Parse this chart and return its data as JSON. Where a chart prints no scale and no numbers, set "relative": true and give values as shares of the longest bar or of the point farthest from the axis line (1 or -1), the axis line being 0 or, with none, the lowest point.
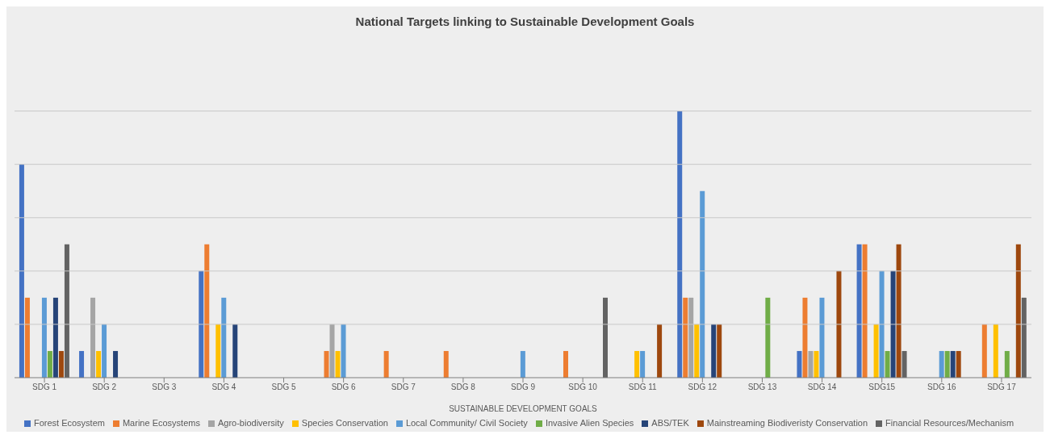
{
  "chart_data": {
    "type": "bar",
    "title": "National Targets linking to Sustainable Development Goals",
    "xlabel": "SUSTAINABLE DEVELOPMENT GOALS",
    "relative": true,
    "legend": "bottom",
    "ref_lines": [
      {
        "axis": "y",
        "value": 0.2,
        "color": "#c8c8c8"
      },
      {
        "axis": "y",
        "value": 0.4,
        "color": "#c8c8c8"
      },
      {
        "axis": "y",
        "value": 0.6,
        "color": "#c8c8c8"
      },
      {
        "axis": "y",
        "value": 0.8,
        "color": "#c8c8c8"
      },
      {
        "axis": "y",
        "value": 1,
        "color": "#c8c8c8"
      }
    ],
    "categories": [
      "SDG 1",
      "SDG 2",
      "SDG 3",
      "SDG 4",
      "SDG 5",
      "SDG 6",
      "SDG 7",
      "SDG 8",
      "SDG 9",
      "SDG 10",
      "SDG 11",
      "SDG 12",
      "SDG 13",
      "SDG 14",
      "SDG15",
      "SDG 16",
      "SDG 17"
    ],
    "series": [
      {
        "name": "Forest Ecosystem",
        "color": "#4472c4",
        "values": [
          0.8,
          0.1,
          0,
          0.4,
          0,
          0,
          0,
          0,
          0,
          0,
          0,
          1,
          0,
          0.1,
          0.5,
          0,
          0
        ]
      },
      {
        "name": "Marine Ecosystems",
        "color": "#ed7d31",
        "values": [
          0.3,
          0,
          0,
          0.5,
          0,
          0.1,
          0.1,
          0.1,
          0,
          0.1,
          0,
          0.3,
          0,
          0.3,
          0.5,
          0,
          0.2
        ]
      },
      {
        "name": "Agro-biodiversity",
        "color": "#a5a5a5",
        "values": [
          0,
          0.3,
          0,
          0,
          0,
          0.2,
          0,
          0,
          0,
          0,
          0,
          0.3,
          0,
          0.1,
          0,
          0,
          0
        ]
      },
      {
        "name": "Species Conservation",
        "color": "#ffc000",
        "values": [
          0,
          0.1,
          0,
          0.2,
          0,
          0.1,
          0,
          0,
          0,
          0,
          0.1,
          0.2,
          0,
          0.1,
          0.2,
          0,
          0.2
        ]
      },
      {
        "name": "Local Community/ Civil Society",
        "color": "#5b9bd5",
        "values": [
          0.3,
          0.2,
          0,
          0.3,
          0,
          0.2,
          0,
          0,
          0.1,
          0,
          0.1,
          0.7,
          0,
          0.3,
          0.4,
          0.1,
          0
        ]
      },
      {
        "name": "Invasive Alien Species",
        "color": "#70ad47",
        "values": [
          0.1,
          0,
          0,
          0,
          0,
          0,
          0,
          0,
          0,
          0,
          0,
          0,
          0.3,
          0,
          0.1,
          0.1,
          0.1
        ]
      },
      {
        "name": "ABS/TEK",
        "color": "#264478",
        "values": [
          0.3,
          0.1,
          0,
          0.2,
          0,
          0,
          0,
          0,
          0,
          0,
          0,
          0.2,
          0,
          0,
          0.4,
          0.1,
          0
        ]
      },
      {
        "name": "Mainstreaming Biodiveristy Conservation",
        "color": "#9e480e",
        "values": [
          0.1,
          0,
          0,
          0,
          0,
          0,
          0,
          0,
          0,
          0,
          0.2,
          0.2,
          0,
          0.4,
          0.5,
          0.1,
          0.5
        ]
      },
      {
        "name": "Financial Resources/Mechanism",
        "color": "#636363",
        "values": [
          0.5,
          0,
          0,
          0,
          0,
          0,
          0,
          0,
          0,
          0.3,
          0,
          0,
          0,
          0,
          0.1,
          0,
          0.3
        ]
      }
    ]
  }
}
